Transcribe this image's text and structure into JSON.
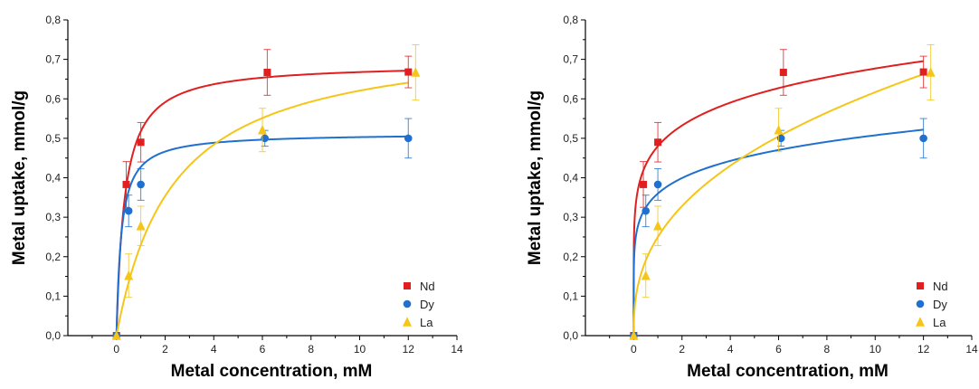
{
  "chart_data": [
    {
      "type": "scatter",
      "panel": "left",
      "title": "",
      "xlabel": "Metal concentration, mM",
      "ylabel": "Metal uptake, mmol/g",
      "xlim": [
        -2,
        14
      ],
      "ylim": [
        0,
        0.8
      ],
      "xticks": [
        0,
        2,
        4,
        6,
        8,
        10,
        12,
        14
      ],
      "xtick_labels": [
        "0",
        "2",
        "4",
        "6",
        "8",
        "10",
        "12",
        "14"
      ],
      "yticks": [
        0,
        0.1,
        0.2,
        0.3,
        0.4,
        0.5,
        0.6,
        0.7,
        0.8
      ],
      "ytick_labels": [
        "0,0",
        "0,1",
        "0,2",
        "0,3",
        "0,4",
        "0,5",
        "0,6",
        "0,7",
        "0,8"
      ],
      "grid": false,
      "legend_position": "bottom-right",
      "fit_model": "langmuir",
      "series": [
        {
          "name": "Nd",
          "color": "#e02020",
          "marker": "square",
          "x": [
            0,
            0.4,
            1.0,
            6.2,
            12.0
          ],
          "y": [
            0,
            0.383,
            0.49,
            0.667,
            0.668
          ],
          "err": [
            0,
            0.058,
            0.05,
            0.058,
            0.04
          ],
          "fit": {
            "qmax": 0.69,
            "K": 3.0
          }
        },
        {
          "name": "Dy",
          "color": "#2070d0",
          "marker": "circle",
          "x": [
            0,
            0.5,
            1.0,
            6.1,
            12.0
          ],
          "y": [
            0,
            0.316,
            0.383,
            0.5,
            0.5
          ],
          "err": [
            0,
            0.04,
            0.04,
            0.02,
            0.05
          ],
          "fit": {
            "qmax": 0.513,
            "K": 5.0
          }
        },
        {
          "name": "La",
          "color": "#f5c518",
          "marker": "triangle",
          "x": [
            0,
            0.5,
            1.0,
            6.0,
            12.3
          ],
          "y": [
            0,
            0.152,
            0.278,
            0.521,
            0.667
          ],
          "err": [
            0,
            0.055,
            0.05,
            0.055,
            0.07
          ],
          "fit": {
            "qmax": 0.765,
            "K": 0.43
          }
        }
      ]
    },
    {
      "type": "scatter",
      "panel": "right",
      "title": "",
      "xlabel": "Metal concentration, mM",
      "ylabel": "Metal uptake, mmol/g",
      "xlim": [
        -2,
        14
      ],
      "ylim": [
        0,
        0.8
      ],
      "xticks": [
        0,
        2,
        4,
        6,
        8,
        10,
        12,
        14
      ],
      "xtick_labels": [
        "0",
        "2",
        "4",
        "6",
        "8",
        "10",
        "12",
        "14"
      ],
      "yticks": [
        0,
        0.1,
        0.2,
        0.3,
        0.4,
        0.5,
        0.6,
        0.7,
        0.8
      ],
      "ytick_labels": [
        "0,0",
        "0,1",
        "0,2",
        "0,3",
        "0,4",
        "0,5",
        "0,6",
        "0,7",
        "0,8"
      ],
      "grid": false,
      "legend_position": "bottom-right",
      "fit_model": "freundlich",
      "series": [
        {
          "name": "Nd",
          "color": "#e02020",
          "marker": "square",
          "x": [
            0,
            0.4,
            1.0,
            6.2,
            12.0
          ],
          "y": [
            0,
            0.383,
            0.49,
            0.667,
            0.668
          ],
          "err": [
            0,
            0.058,
            0.05,
            0.058,
            0.04
          ],
          "fit": {
            "Kf": 0.48,
            "n": 6.7
          }
        },
        {
          "name": "Dy",
          "color": "#2070d0",
          "marker": "circle",
          "x": [
            0,
            0.5,
            1.0,
            6.1,
            12.0
          ],
          "y": [
            0,
            0.316,
            0.383,
            0.5,
            0.5
          ],
          "err": [
            0,
            0.04,
            0.04,
            0.02,
            0.05
          ],
          "fit": {
            "Kf": 0.36,
            "n": 6.7
          }
        },
        {
          "name": "La",
          "color": "#f5c518",
          "marker": "triangle",
          "x": [
            0,
            0.5,
            1.0,
            6.0,
            12.3
          ],
          "y": [
            0,
            0.152,
            0.278,
            0.521,
            0.667
          ],
          "err": [
            0,
            0.055,
            0.05,
            0.055,
            0.07
          ],
          "fit": {
            "Kf": 0.25,
            "n": 2.55
          }
        }
      ]
    }
  ]
}
